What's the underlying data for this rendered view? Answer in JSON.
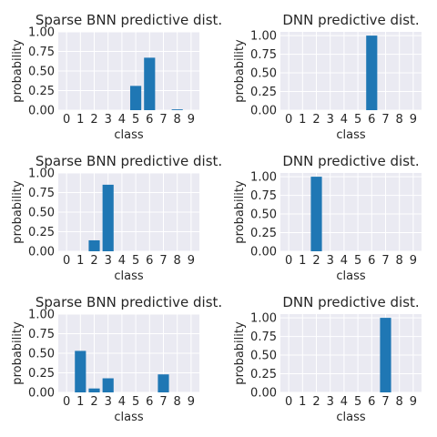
{
  "chart_data": [
    {
      "type": "bar",
      "title": "Sparse BNN predictive dist.",
      "xlabel": "class",
      "ylabel": "probability",
      "categories": [
        "0",
        "1",
        "2",
        "3",
        "4",
        "5",
        "6",
        "7",
        "8",
        "9"
      ],
      "values": [
        0,
        0,
        0,
        0,
        0,
        0.31,
        0.67,
        0,
        0.01,
        0
      ],
      "ylim": [
        0,
        1.0
      ],
      "yticks": [
        "0.00",
        "0.25",
        "0.50",
        "0.75",
        "1.00"
      ],
      "grid": true,
      "bar_color": "#1f77b4"
    },
    {
      "type": "bar",
      "title": "DNN predictive dist.",
      "xlabel": "class",
      "ylabel": "probability",
      "categories": [
        "0",
        "1",
        "2",
        "3",
        "4",
        "5",
        "6",
        "7",
        "8",
        "9"
      ],
      "values": [
        0,
        0,
        0,
        0,
        0,
        0,
        1.0,
        0,
        0,
        0
      ],
      "ylim": [
        0,
        1.05
      ],
      "yticks": [
        "0.00",
        "0.25",
        "0.50",
        "0.75",
        "1.00"
      ],
      "grid": true,
      "bar_color": "#1f77b4"
    },
    {
      "type": "bar",
      "title": "Sparse BNN predictive dist.",
      "xlabel": "class",
      "ylabel": "probability",
      "categories": [
        "0",
        "1",
        "2",
        "3",
        "4",
        "5",
        "6",
        "7",
        "8",
        "9"
      ],
      "values": [
        0,
        0,
        0.14,
        0.85,
        0,
        0,
        0,
        0,
        0,
        0
      ],
      "ylim": [
        0,
        1.0
      ],
      "yticks": [
        "0.00",
        "0.25",
        "0.50",
        "0.75",
        "1.00"
      ],
      "grid": true,
      "bar_color": "#1f77b4"
    },
    {
      "type": "bar",
      "title": "DNN predictive dist.",
      "xlabel": "class",
      "ylabel": "probability",
      "categories": [
        "0",
        "1",
        "2",
        "3",
        "4",
        "5",
        "6",
        "7",
        "8",
        "9"
      ],
      "values": [
        0,
        0,
        1.0,
        0,
        0,
        0,
        0,
        0,
        0,
        0
      ],
      "ylim": [
        0,
        1.05
      ],
      "yticks": [
        "0.00",
        "0.25",
        "0.50",
        "0.75",
        "1.00"
      ],
      "grid": true,
      "bar_color": "#1f77b4"
    },
    {
      "type": "bar",
      "title": "Sparse BNN predictive dist.",
      "xlabel": "class",
      "ylabel": "probability",
      "categories": [
        "0",
        "1",
        "2",
        "3",
        "4",
        "5",
        "6",
        "7",
        "8",
        "9"
      ],
      "values": [
        0,
        0.53,
        0.05,
        0.18,
        0,
        0,
        0,
        0.23,
        0,
        0
      ],
      "ylim": [
        0,
        1.0
      ],
      "yticks": [
        "0.00",
        "0.25",
        "0.50",
        "0.75",
        "1.00"
      ],
      "grid": true,
      "bar_color": "#1f77b4"
    },
    {
      "type": "bar",
      "title": "DNN predictive dist.",
      "xlabel": "class",
      "ylabel": "probability",
      "categories": [
        "0",
        "1",
        "2",
        "3",
        "4",
        "5",
        "6",
        "7",
        "8",
        "9"
      ],
      "values": [
        0,
        0,
        0,
        0,
        0,
        0,
        0,
        1.0,
        0,
        0
      ],
      "ylim": [
        0,
        1.05
      ],
      "yticks": [
        "0.00",
        "0.25",
        "0.50",
        "0.75",
        "1.00"
      ],
      "grid": true,
      "bar_color": "#1f77b4"
    }
  ],
  "style": {
    "axes_background": "#eaeaf2",
    "grid_color": "#ffffff",
    "text_color": "#262626"
  }
}
